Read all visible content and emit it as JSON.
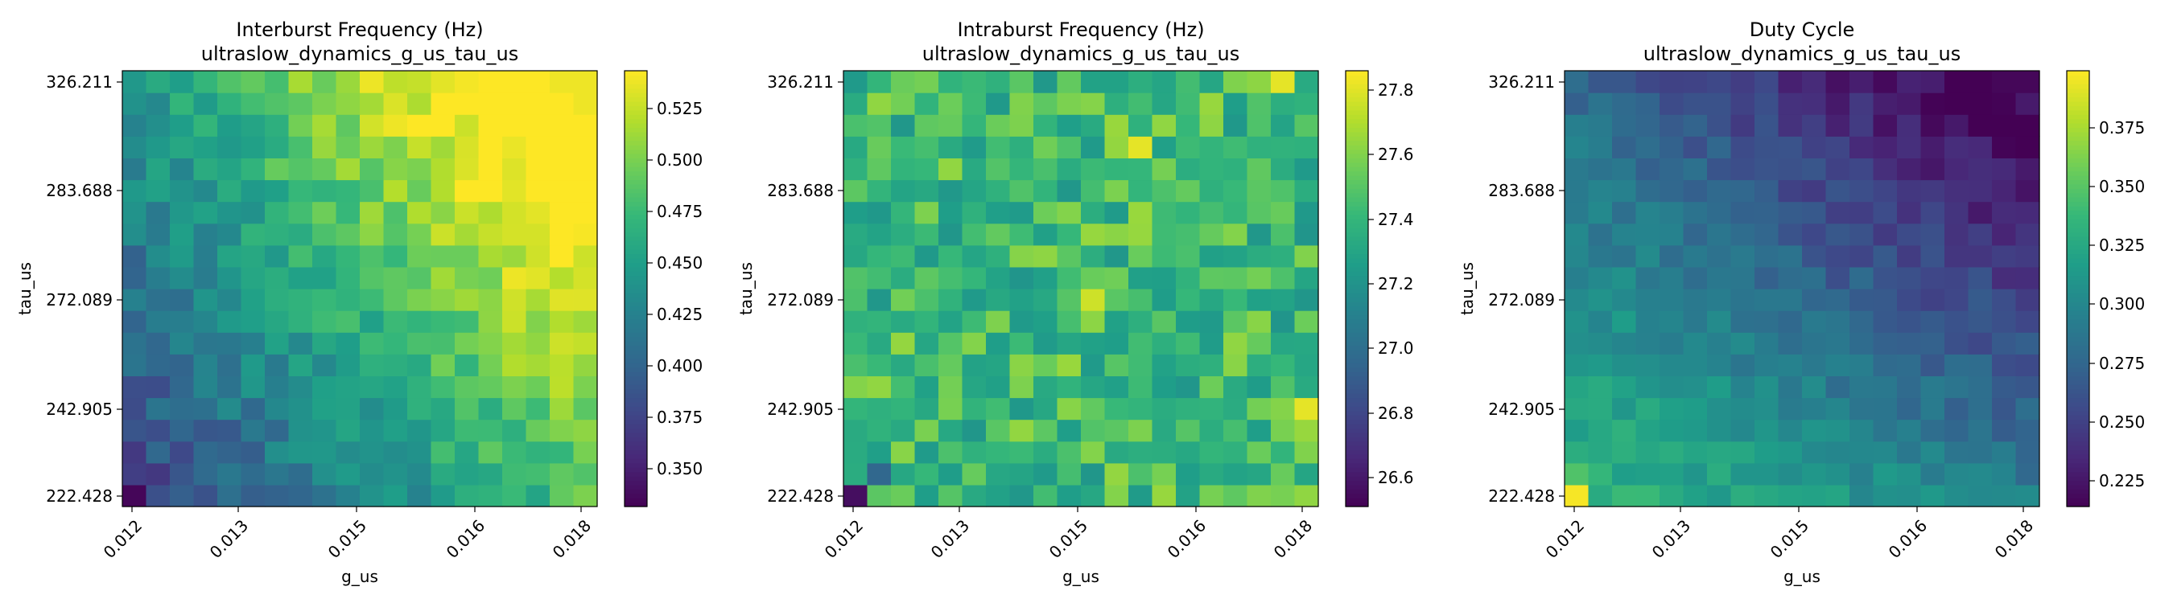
{
  "chart_data": [
    {
      "type": "heatmap",
      "title": "Interburst Frequency (Hz)",
      "subtitle": "ultraslow_dynamics_g_us_tau_us",
      "xlabel": "g_us",
      "ylabel": "tau_us",
      "x_ticks": [
        "0.012",
        "0.013",
        "0.015",
        "0.016",
        "0.018"
      ],
      "y_ticks": [
        "326.211",
        "283.688",
        "272.089",
        "242.905",
        "222.428"
      ],
      "colormap": "viridis",
      "colorbar_range": [
        0.332,
        0.545
      ],
      "colorbar_ticks": [
        "0.350",
        "0.375",
        "0.400",
        "0.425",
        "0.450",
        "0.475",
        "0.500",
        "0.525"
      ],
      "colorbar_tick_values": [
        0.35,
        0.375,
        0.4,
        0.425,
        0.45,
        0.475,
        0.5,
        0.525
      ],
      "grid": {
        "rows": 20,
        "cols": 20
      },
      "model": {
        "type": "linear",
        "base": 0.375,
        "gx": 0.11,
        "gy": 0.07,
        "gxy": 0.04,
        "noise": 0.02
      },
      "overrides": [
        {
          "r": 0,
          "c": 0,
          "v": 0.335
        },
        {
          "r": 0,
          "c": 1,
          "v": 0.385
        },
        {
          "r": 19,
          "c": 18,
          "v": 0.54
        },
        {
          "r": 19,
          "c": 19,
          "v": 0.54
        },
        {
          "r": 18,
          "c": 19,
          "v": 0.54
        },
        {
          "r": 11,
          "c": 17,
          "v": 0.53
        },
        {
          "r": 9,
          "c": 19,
          "v": 0.535
        },
        {
          "r": 9,
          "c": 16,
          "v": 0.53
        }
      ]
    },
    {
      "type": "heatmap",
      "title": "Intraburst Frequency (Hz)",
      "subtitle": "ultraslow_dynamics_g_us_tau_us",
      "xlabel": "g_us",
      "ylabel": "tau_us",
      "x_ticks": [
        "0.012",
        "0.013",
        "0.015",
        "0.016",
        "0.018"
      ],
      "y_ticks": [
        "326.211",
        "283.688",
        "272.089",
        "242.905",
        "222.428"
      ],
      "colormap": "viridis",
      "colorbar_range": [
        26.5,
        27.85
      ],
      "colorbar_ticks": [
        "26.6",
        "26.8",
        "27.0",
        "27.2",
        "27.4",
        "27.6",
        "27.8"
      ],
      "colorbar_tick_values": [
        26.6,
        26.8,
        27.0,
        27.2,
        27.4,
        27.6,
        27.8
      ],
      "grid": {
        "rows": 20,
        "cols": 20
      },
      "model": {
        "type": "noise",
        "base": 27.42,
        "noise": 0.22
      },
      "overrides": [
        {
          "r": 0,
          "c": 0,
          "v": 26.55
        },
        {
          "r": 1,
          "c": 1,
          "v": 26.95
        },
        {
          "r": 4,
          "c": 19,
          "v": 27.8
        },
        {
          "r": 19,
          "c": 18,
          "v": 27.8
        },
        {
          "r": 16,
          "c": 12,
          "v": 27.8
        },
        {
          "r": 9,
          "c": 10,
          "v": 27.75
        }
      ]
    },
    {
      "type": "heatmap",
      "title": "Duty Cycle",
      "subtitle": "ultraslow_dynamics_g_us_tau_us",
      "xlabel": "g_us",
      "ylabel": "tau_us",
      "x_ticks": [
        "0.012",
        "0.013",
        "0.015",
        "0.016",
        "0.018"
      ],
      "y_ticks": [
        "326.211",
        "283.688",
        "272.089",
        "242.905",
        "222.428"
      ],
      "colormap": "viridis",
      "colorbar_range": [
        0.212,
        0.397
      ],
      "colorbar_ticks": [
        "0.225",
        "0.250",
        "0.275",
        "0.300",
        "0.325",
        "0.350",
        "0.375"
      ],
      "colorbar_tick_values": [
        0.225,
        0.25,
        0.275,
        0.3,
        0.325,
        0.35,
        0.375
      ],
      "grid": {
        "rows": 20,
        "cols": 20
      },
      "model": {
        "type": "linear",
        "base": 0.335,
        "gx": -0.045,
        "gy": -0.06,
        "gxy": -0.03,
        "noise": 0.012
      },
      "overrides": [
        {
          "r": 0,
          "c": 0,
          "v": 0.395
        },
        {
          "r": 1,
          "c": 0,
          "v": 0.345
        },
        {
          "r": 19,
          "c": 19,
          "v": 0.215
        },
        {
          "r": 19,
          "c": 18,
          "v": 0.215
        },
        {
          "r": 18,
          "c": 19,
          "v": 0.225
        }
      ]
    }
  ]
}
